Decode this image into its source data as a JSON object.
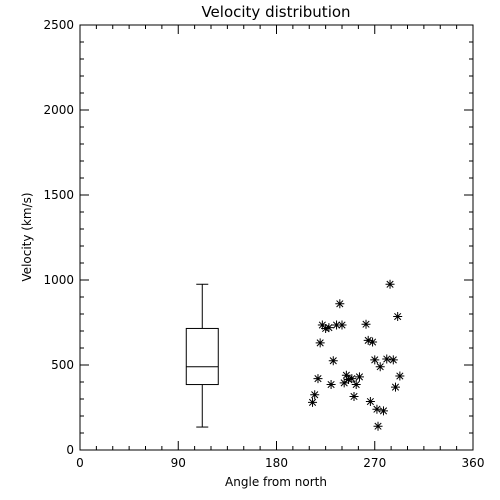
{
  "chart_data": {
    "type": "scatter",
    "title": "Velocity distribution",
    "xlabel": "Angle from north",
    "ylabel": "Velocity (km/s)",
    "xlim": [
      0,
      360
    ],
    "ylim": [
      0,
      2500
    ],
    "x_ticks": [
      "0",
      "90",
      "180",
      "270",
      "360"
    ],
    "y_ticks": [
      "0",
      "500",
      "1000",
      "1500",
      "2000",
      "2500"
    ],
    "grid": false,
    "boxplot": {
      "x": 112,
      "min": 135,
      "q1": 385,
      "median": 490,
      "q3": 715,
      "max": 975
    },
    "points": [
      {
        "x": 213,
        "y": 280
      },
      {
        "x": 215,
        "y": 325
      },
      {
        "x": 218,
        "y": 420
      },
      {
        "x": 220,
        "y": 630
      },
      {
        "x": 222,
        "y": 735
      },
      {
        "x": 225,
        "y": 715
      },
      {
        "x": 228,
        "y": 720
      },
      {
        "x": 230,
        "y": 385
      },
      {
        "x": 232,
        "y": 525
      },
      {
        "x": 235,
        "y": 735
      },
      {
        "x": 238,
        "y": 860
      },
      {
        "x": 240,
        "y": 735
      },
      {
        "x": 242,
        "y": 395
      },
      {
        "x": 244,
        "y": 440
      },
      {
        "x": 246,
        "y": 415
      },
      {
        "x": 249,
        "y": 420
      },
      {
        "x": 251,
        "y": 315
      },
      {
        "x": 253,
        "y": 385
      },
      {
        "x": 256,
        "y": 430
      },
      {
        "x": 262,
        "y": 740
      },
      {
        "x": 264,
        "y": 645
      },
      {
        "x": 266,
        "y": 285
      },
      {
        "x": 268,
        "y": 635
      },
      {
        "x": 270,
        "y": 530
      },
      {
        "x": 272,
        "y": 240
      },
      {
        "x": 273,
        "y": 140
      },
      {
        "x": 275,
        "y": 490
      },
      {
        "x": 278,
        "y": 230
      },
      {
        "x": 281,
        "y": 535
      },
      {
        "x": 284,
        "y": 975
      },
      {
        "x": 287,
        "y": 530
      },
      {
        "x": 289,
        "y": 370
      },
      {
        "x": 291,
        "y": 785
      },
      {
        "x": 293,
        "y": 435
      }
    ]
  }
}
